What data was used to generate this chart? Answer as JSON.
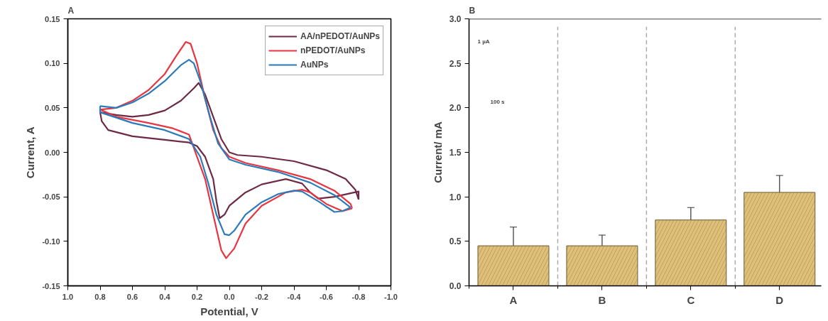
{
  "chart_data": [
    {
      "type": "line",
      "title": "A",
      "xlabel": "Potential, V",
      "ylabel": "Current, A",
      "legend": "top right",
      "xlim": [
        1.0,
        -1.0
      ],
      "ylim": [
        -0.15,
        0.15
      ],
      "xticks": [
        {
          "value": 1.0,
          "label": "1.0"
        },
        {
          "value": 0.8,
          "label": "0.8"
        },
        {
          "value": 0.6,
          "label": "0.6"
        },
        {
          "value": 0.4,
          "label": "0.4"
        },
        {
          "value": 0.2,
          "label": "0.2"
        },
        {
          "value": 0,
          "label": "0.0"
        },
        {
          "value": -0.2,
          "label": "-0.2"
        },
        {
          "value": -0.4,
          "label": "-0.4"
        },
        {
          "value": -0.6,
          "label": "-0.6"
        },
        {
          "value": -0.8,
          "label": "-0.8"
        },
        {
          "value": -1.0,
          "label": "-1.0"
        }
      ],
      "yticks": [
        {
          "value": -0.15,
          "label": "-0.15"
        },
        {
          "value": -0.1,
          "label": "-0.10"
        },
        {
          "value": -0.05,
          "label": "-0.05"
        },
        {
          "value": 0,
          "label": "0.00"
        },
        {
          "value": 0.05,
          "label": "0.05"
        },
        {
          "value": 0.1,
          "label": "0.10"
        },
        {
          "value": 0.15,
          "label": "0.15"
        }
      ],
      "series": [
        {
          "name": "AA/nPEDOT/AuNPs",
          "color": "#6e2a45",
          "x": [
            0.8,
            0.79,
            0.75,
            0.6,
            0.4,
            0.25,
            0.2,
            0.15,
            0.1,
            0.08,
            0.06,
            0.03,
            0.0,
            -0.1,
            -0.2,
            -0.35,
            -0.45,
            -0.5,
            -0.55,
            -0.65,
            -0.75,
            -0.8,
            -0.8,
            -0.78,
            -0.72,
            -0.6,
            -0.4,
            -0.2,
            -0.05,
            0.0,
            0.05,
            0.1,
            0.15,
            0.19,
            0.22,
            0.3,
            0.4,
            0.5,
            0.6,
            0.7,
            0.8
          ],
          "values": [
            0.045,
            0.035,
            0.025,
            0.018,
            0.014,
            0.011,
            0.007,
            -0.005,
            -0.03,
            -0.055,
            -0.074,
            -0.07,
            -0.06,
            -0.045,
            -0.036,
            -0.03,
            -0.035,
            -0.045,
            -0.052,
            -0.05,
            -0.046,
            -0.044,
            -0.053,
            -0.042,
            -0.03,
            -0.02,
            -0.01,
            -0.005,
            -0.003,
            0.0,
            0.015,
            0.04,
            0.065,
            0.078,
            0.072,
            0.058,
            0.047,
            0.042,
            0.04,
            0.042,
            0.045
          ]
        },
        {
          "name": "nPEDOT/AuNPs",
          "color": "#e8353f",
          "x": [
            0.8,
            0.7,
            0.6,
            0.5,
            0.4,
            0.33,
            0.27,
            0.24,
            0.2,
            0.15,
            0.1,
            0.05,
            0.0,
            -0.1,
            -0.3,
            -0.5,
            -0.65,
            -0.75,
            -0.76,
            -0.7,
            -0.6,
            -0.5,
            -0.45,
            -0.35,
            -0.2,
            -0.1,
            -0.03,
            0.02,
            0.05,
            0.1,
            0.15,
            0.2,
            0.25,
            0.35,
            0.5,
            0.7,
            0.8
          ],
          "values": [
            0.048,
            0.05,
            0.058,
            0.07,
            0.088,
            0.108,
            0.124,
            0.122,
            0.1,
            0.06,
            0.025,
            0.005,
            -0.005,
            -0.012,
            -0.02,
            -0.03,
            -0.043,
            -0.058,
            -0.063,
            -0.066,
            -0.058,
            -0.045,
            -0.042,
            -0.045,
            -0.06,
            -0.08,
            -0.108,
            -0.119,
            -0.11,
            -0.07,
            -0.03,
            -0.005,
            0.02,
            0.027,
            0.033,
            0.04,
            0.048
          ]
        },
        {
          "name": "AuNPs",
          "color": "#2b7bba",
          "x": [
            0.8,
            0.7,
            0.6,
            0.5,
            0.4,
            0.3,
            0.25,
            0.22,
            0.18,
            0.12,
            0.07,
            0.0,
            -0.1,
            -0.3,
            -0.5,
            -0.65,
            -0.75,
            -0.7,
            -0.65,
            -0.55,
            -0.45,
            -0.4,
            -0.3,
            -0.2,
            -0.1,
            -0.03,
            0.0,
            0.03,
            0.08,
            0.13,
            0.18,
            0.25,
            0.4,
            0.6,
            0.8,
            0.8
          ],
          "values": [
            0.052,
            0.05,
            0.056,
            0.066,
            0.08,
            0.098,
            0.104,
            0.1,
            0.08,
            0.04,
            0.01,
            -0.008,
            -0.014,
            -0.022,
            -0.034,
            -0.048,
            -0.062,
            -0.066,
            -0.067,
            -0.055,
            -0.044,
            -0.043,
            -0.047,
            -0.056,
            -0.07,
            -0.088,
            -0.093,
            -0.092,
            -0.07,
            -0.035,
            -0.005,
            0.015,
            0.025,
            0.033,
            0.045,
            0.052
          ]
        }
      ]
    },
    {
      "type": "bar",
      "title": "B",
      "ylabel": "Current/ mA",
      "categories": [
        "A",
        "B",
        "C",
        "D"
      ],
      "values": [
        0.45,
        0.45,
        0.74,
        1.05
      ],
      "errors": [
        [
          0.25,
          0.66
        ],
        [
          0.32,
          0.57
        ],
        [
          0.61,
          0.88
        ],
        [
          0.93,
          1.24
        ]
      ],
      "color": "#dfc07a",
      "ylim": [
        0,
        3.0
      ],
      "yticks": [
        {
          "value": 0,
          "label": "0.0"
        },
        {
          "value": 0.5,
          "label": "0.5"
        },
        {
          "value": 1.0,
          "label": "1.0"
        },
        {
          "value": 1.5,
          "label": "1.5"
        },
        {
          "value": 2.0,
          "label": "2.0"
        },
        {
          "value": 2.5,
          "label": "2.5"
        },
        {
          "value": 3.0,
          "label": "3.0"
        }
      ],
      "annotations": [
        "1 µA",
        "100 s"
      ]
    }
  ]
}
